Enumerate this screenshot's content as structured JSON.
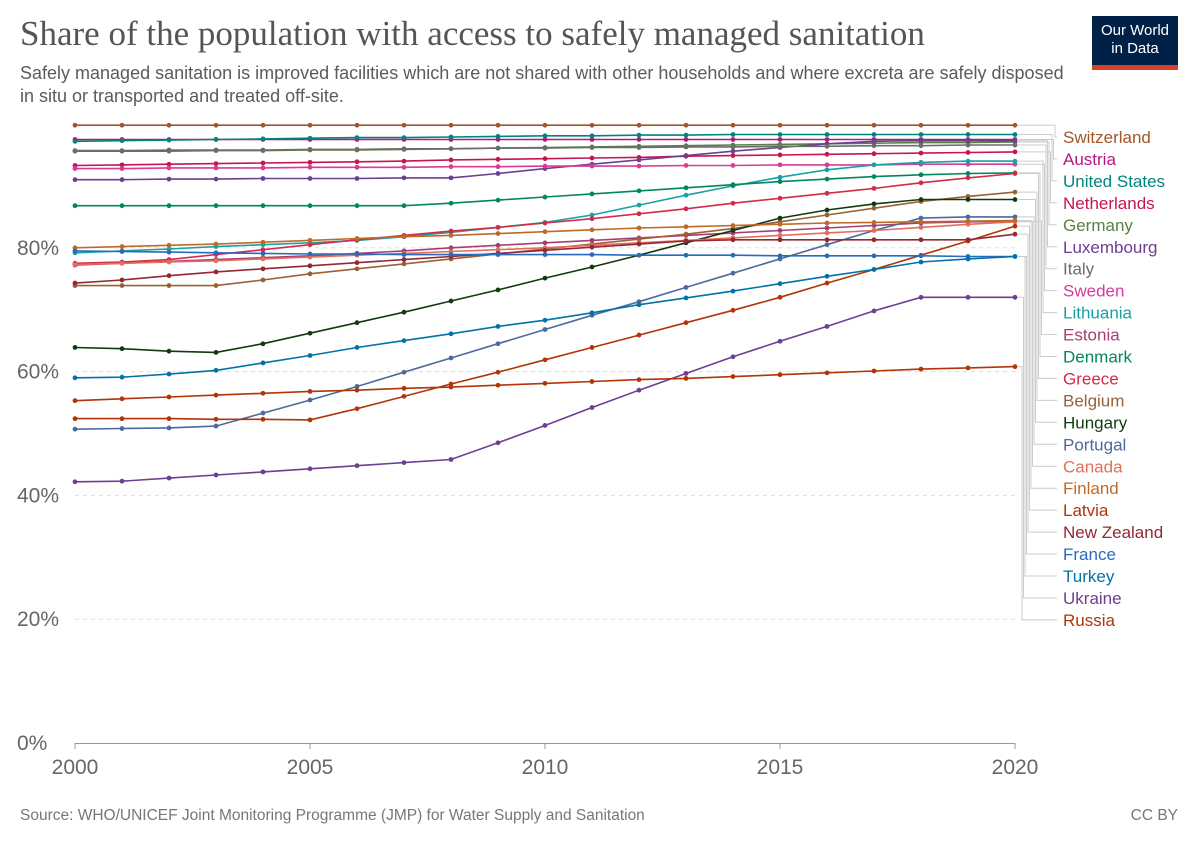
{
  "header": {
    "title": "Share of the population with access to safely managed sanitation",
    "subtitle": "Safely managed sanitation is improved facilities which are not shared with other households and where excreta are safely disposed in situ or transported and treated off-site.",
    "logo_line1": "Our World",
    "logo_line2": "in Data"
  },
  "footer": {
    "source": "Source: WHO/UNICEF Joint Monitoring Programme (JMP) for Water Supply and Sanitation",
    "license": "CC BY"
  },
  "colors": {
    "logo_bg": "#002147",
    "logo_accent": "#dc3f26"
  },
  "chart_data": {
    "type": "line",
    "title": "Share of the population with access to safely managed sanitation",
    "xlim": [
      2000,
      2020
    ],
    "ylim": [
      0,
      100
    ],
    "y_ticks": [
      0,
      20,
      40,
      60,
      80
    ],
    "y_tick_labels": [
      "0%",
      "20%",
      "40%",
      "60%",
      "80%"
    ],
    "x_ticks": [
      2000,
      2005,
      2010,
      2015,
      2020
    ],
    "x_tick_labels": [
      "2000",
      "2005",
      "2010",
      "2015",
      "2020"
    ],
    "grid": "horizontal dashed",
    "legend_position": "right",
    "x": [
      2000,
      2001,
      2002,
      2003,
      2004,
      2005,
      2006,
      2007,
      2008,
      2009,
      2010,
      2011,
      2012,
      2013,
      2014,
      2015,
      2016,
      2017,
      2018,
      2019,
      2020
    ],
    "series": [
      {
        "name": "Switzerland",
        "color": "#a2552c",
        "values": [
          99.8,
          99.8,
          99.8,
          99.8,
          99.8,
          99.8,
          99.8,
          99.8,
          99.8,
          99.8,
          99.8,
          99.8,
          99.8,
          99.8,
          99.8,
          99.8,
          99.8,
          99.8,
          99.8,
          99.8,
          99.8
        ]
      },
      {
        "name": "Austria",
        "color": "#b8157e",
        "values": [
          97.5,
          97.5,
          97.5,
          97.5,
          97.5,
          97.5,
          97.5,
          97.5,
          97.5,
          97.5,
          97.5,
          97.5,
          97.5,
          97.5,
          97.5,
          97.5,
          97.5,
          97.5,
          97.5,
          97.5,
          97.5
        ]
      },
      {
        "name": "United States",
        "color": "#00847e",
        "values": [
          97.2,
          97.3,
          97.4,
          97.5,
          97.6,
          97.7,
          97.8,
          97.8,
          97.9,
          98.0,
          98.1,
          98.1,
          98.2,
          98.2,
          98.3,
          98.3,
          98.3,
          98.3,
          98.3,
          98.3,
          98.3
        ]
      },
      {
        "name": "Netherlands",
        "color": "#c7154d",
        "values": [
          93.3,
          93.4,
          93.5,
          93.6,
          93.7,
          93.8,
          93.9,
          94.0,
          94.2,
          94.3,
          94.4,
          94.5,
          94.6,
          94.8,
          94.9,
          95.0,
          95.1,
          95.2,
          95.3,
          95.4,
          95.5
        ]
      },
      {
        "name": "Germany",
        "color": "#578145",
        "values": [
          95.6,
          95.6,
          95.6,
          95.7,
          95.7,
          95.8,
          95.8,
          95.9,
          96.0,
          96.1,
          96.2,
          96.3,
          96.4,
          96.5,
          96.6,
          96.7,
          96.8,
          96.9,
          97.0,
          97.0,
          97.1
        ]
      },
      {
        "name": "Luxembourg",
        "color": "#6d3e91",
        "values": [
          91.0,
          91.0,
          91.1,
          91.1,
          91.2,
          91.2,
          91.2,
          91.3,
          91.3,
          92.0,
          92.8,
          93.5,
          94.2,
          94.9,
          95.6,
          96.2,
          96.8,
          97.2,
          97.3,
          97.3,
          97.3
        ]
      },
      {
        "name": "Italy",
        "color": "#6c6c6c",
        "values": [
          95.7,
          95.7,
          95.8,
          95.8,
          95.8,
          95.9,
          95.9,
          96.0,
          96.0,
          96.1,
          96.1,
          96.2,
          96.2,
          96.3,
          96.3,
          96.4,
          96.4,
          96.5,
          96.5,
          96.6,
          96.6
        ]
      },
      {
        "name": "Sweden",
        "color": "#d73c97",
        "values": [
          92.8,
          92.8,
          92.9,
          92.9,
          92.9,
          93.0,
          93.0,
          93.0,
          93.1,
          93.1,
          93.2,
          93.2,
          93.2,
          93.3,
          93.3,
          93.4,
          93.4,
          93.4,
          93.5,
          93.5,
          93.5
        ]
      },
      {
        "name": "Lithuania",
        "color": "#18a2a5",
        "values": [
          79.2,
          79.5,
          79.8,
          80.2,
          80.5,
          80.8,
          81.2,
          81.8,
          82.5,
          83.3,
          84.1,
          85.3,
          86.9,
          88.5,
          90.0,
          91.4,
          92.6,
          93.4,
          93.8,
          94.0,
          94.0
        ]
      },
      {
        "name": "Estonia",
        "color": "#a53f73",
        "values": [
          77.2,
          77.5,
          77.8,
          78.1,
          78.4,
          78.7,
          79.1,
          79.5,
          80.0,
          80.4,
          80.8,
          81.2,
          81.6,
          82.0,
          82.4,
          82.8,
          83.2,
          83.6,
          84.0,
          84.2,
          84.3
        ]
      },
      {
        "name": "Denmark",
        "color": "#00875d",
        "values": [
          86.8,
          86.8,
          86.8,
          86.8,
          86.8,
          86.8,
          86.8,
          86.8,
          87.2,
          87.7,
          88.2,
          88.7,
          89.2,
          89.7,
          90.2,
          90.7,
          91.1,
          91.5,
          91.8,
          92.0,
          92.1
        ]
      },
      {
        "name": "Greece",
        "color": "#d42b4b",
        "values": [
          77.5,
          77.7,
          78.1,
          78.9,
          79.7,
          80.5,
          81.3,
          82.0,
          82.7,
          83.3,
          84.0,
          84.7,
          85.5,
          86.3,
          87.2,
          88.0,
          88.8,
          89.6,
          90.5,
          91.3,
          92.0
        ]
      },
      {
        "name": "Belgium",
        "color": "#996136",
        "values": [
          73.9,
          73.9,
          73.9,
          73.9,
          74.8,
          75.8,
          76.6,
          77.4,
          78.2,
          79.0,
          79.8,
          80.6,
          81.4,
          82.2,
          83.1,
          84.2,
          85.3,
          86.4,
          87.5,
          88.3,
          89.0
        ]
      },
      {
        "name": "Hungary",
        "color": "#0f3b0e",
        "values": [
          63.9,
          63.7,
          63.3,
          63.1,
          64.5,
          66.2,
          67.9,
          69.6,
          71.4,
          73.2,
          75.1,
          76.9,
          78.8,
          80.8,
          82.8,
          84.8,
          86.1,
          87.1,
          87.8,
          87.8,
          87.8
        ]
      },
      {
        "name": "Portugal",
        "color": "#4c6a9c",
        "values": [
          50.7,
          50.8,
          50.9,
          51.2,
          53.3,
          55.4,
          57.6,
          59.9,
          62.2,
          64.5,
          66.8,
          69.1,
          71.3,
          73.6,
          75.9,
          78.2,
          80.5,
          82.8,
          84.8,
          85.0,
          85.0
        ]
      },
      {
        "name": "Canada",
        "color": "#e56e5a",
        "values": [
          77.3,
          77.5,
          77.7,
          77.9,
          78.2,
          78.5,
          78.8,
          79.1,
          79.4,
          79.7,
          80.0,
          80.4,
          80.8,
          81.2,
          81.6,
          82.0,
          82.4,
          82.8,
          83.3,
          83.8,
          84.2
        ]
      },
      {
        "name": "Finland",
        "color": "#bf6a27",
        "values": [
          80.0,
          80.2,
          80.4,
          80.6,
          80.9,
          81.2,
          81.5,
          81.8,
          82.0,
          82.3,
          82.6,
          82.9,
          83.2,
          83.4,
          83.6,
          83.8,
          84.0,
          84.1,
          84.2,
          84.3,
          84.4
        ]
      },
      {
        "name": "Latvia",
        "color": "#b13507",
        "values": [
          52.4,
          52.4,
          52.4,
          52.3,
          52.3,
          52.2,
          54.0,
          56.0,
          58.0,
          59.9,
          61.9,
          63.9,
          65.9,
          67.9,
          69.9,
          72.0,
          74.3,
          76.5,
          78.8,
          81.1,
          83.5
        ]
      },
      {
        "name": "New Zealand",
        "color": "#932834",
        "values": [
          74.3,
          74.8,
          75.5,
          76.1,
          76.6,
          77.1,
          77.6,
          78.1,
          78.6,
          79.1,
          79.6,
          80.1,
          80.6,
          81.1,
          81.3,
          81.3,
          81.3,
          81.3,
          81.3,
          81.3,
          82.2
        ]
      },
      {
        "name": "France",
        "color": "#286bbb",
        "values": [
          79.5,
          79.4,
          79.3,
          79.2,
          79.1,
          79.0,
          79.0,
          78.9,
          78.9,
          78.9,
          78.9,
          78.9,
          78.8,
          78.8,
          78.8,
          78.7,
          78.7,
          78.7,
          78.7,
          78.6,
          78.6
        ]
      },
      {
        "name": "Turkey",
        "color": "#0073a8",
        "values": [
          59.0,
          59.1,
          59.6,
          60.2,
          61.4,
          62.6,
          63.9,
          65.0,
          66.1,
          67.3,
          68.3,
          69.5,
          70.8,
          71.9,
          73.0,
          74.2,
          75.4,
          76.5,
          77.7,
          78.2,
          78.6
        ]
      },
      {
        "name": "Ukraine",
        "color": "#6d3e91",
        "values": [
          42.2,
          42.3,
          42.8,
          43.3,
          43.8,
          44.3,
          44.8,
          45.3,
          45.8,
          48.5,
          51.3,
          54.2,
          57.0,
          59.7,
          62.4,
          64.9,
          67.3,
          69.8,
          72.0,
          72.0,
          72.0
        ]
      },
      {
        "name": "Russia",
        "color": "#b13507",
        "values": [
          55.3,
          55.6,
          55.9,
          56.2,
          56.5,
          56.8,
          57.0,
          57.3,
          57.5,
          57.8,
          58.1,
          58.4,
          58.7,
          58.9,
          59.2,
          59.5,
          59.8,
          60.1,
          60.4,
          60.6,
          60.8
        ]
      }
    ]
  }
}
